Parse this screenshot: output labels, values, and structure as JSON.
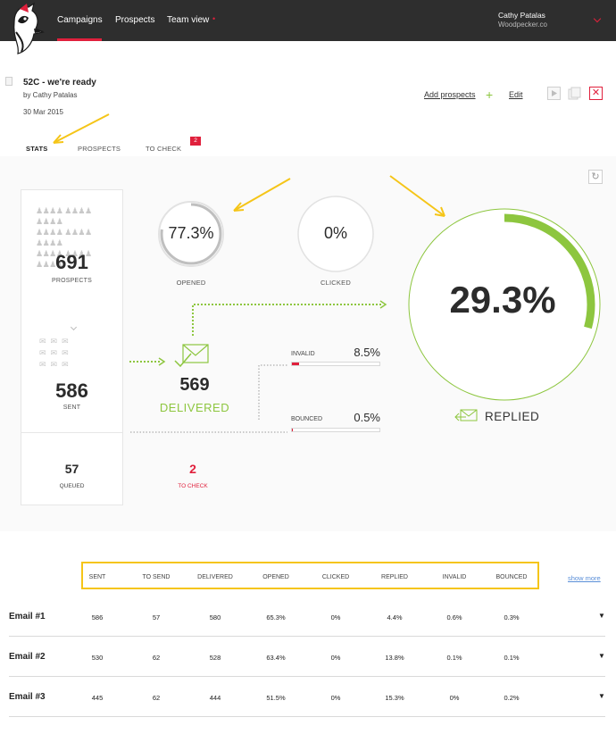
{
  "nav": {
    "links": [
      "Campaigns",
      "Prospects",
      "Team view"
    ],
    "team_badge": "•",
    "user_name": "Cathy Patalas",
    "user_org": "Woodpecker.co"
  },
  "campaign": {
    "title": "52C - we're ready",
    "author": "by Cathy Patalas",
    "date": "30 Mar 2015",
    "add_prospects": "Add prospects",
    "plus": "+",
    "edit": "Edit",
    "close": "✕"
  },
  "tabs": [
    {
      "label": "STATS",
      "active": true
    },
    {
      "label": "PROSPECTS",
      "active": false
    },
    {
      "label": "TO CHECK",
      "active": false,
      "badge": "2"
    }
  ],
  "stats": {
    "prospects": {
      "value": "691",
      "label": "PROSPECTS"
    },
    "sent": {
      "value": "586",
      "label": "SENT"
    },
    "opened": {
      "value": "77.3%",
      "label": "OPENED",
      "fraction": 0.773
    },
    "clicked": {
      "value": "0%",
      "label": "CLICKED",
      "fraction": 0.0
    },
    "delivered": {
      "value": "569",
      "label": "DELIVERED"
    },
    "invalid": {
      "label": "INVALID",
      "value": "8.5%",
      "fraction": 0.085
    },
    "bounced": {
      "label": "BOUNCED",
      "value": "0.5%",
      "fraction": 0.005
    },
    "replied": {
      "value": "29.3%",
      "label": "REPLIED",
      "fraction": 0.293
    },
    "queued": {
      "value": "57",
      "label": "QUEUED"
    },
    "to_check": {
      "value": "2",
      "label": "TO CHECK"
    }
  },
  "colors": {
    "accent": "#e0203c",
    "green": "#8dc63f",
    "highlight": "#f5c518",
    "navbar": "#2e2e2e"
  },
  "table": {
    "headers": [
      "SENT",
      "TO SEND",
      "DELIVERED",
      "OPENED",
      "CLICKED",
      "REPLIED",
      "INVALID",
      "BOUNCED"
    ],
    "show_more": "show more",
    "rows": [
      {
        "name": "Email #1",
        "cells": [
          "586",
          "57",
          "580",
          "65.3%",
          "0%",
          "4.4%",
          "0.6%",
          "0.3%"
        ]
      },
      {
        "name": "Email #2",
        "cells": [
          "530",
          "62",
          "528",
          "63.4%",
          "0%",
          "13.8%",
          "0.1%",
          "0.1%"
        ]
      },
      {
        "name": "Email #3",
        "cells": [
          "445",
          "62",
          "444",
          "51.5%",
          "0%",
          "15.3%",
          "0%",
          "0.2%"
        ]
      }
    ]
  }
}
